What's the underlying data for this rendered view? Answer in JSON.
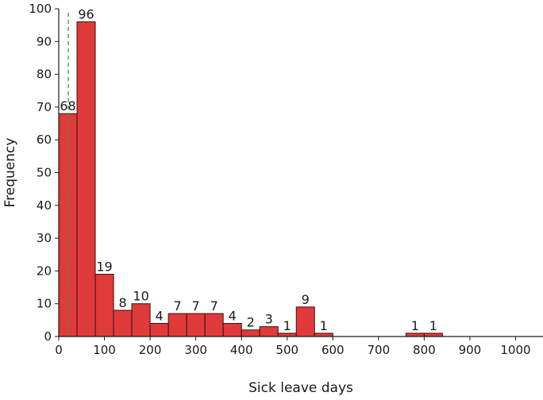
{
  "chart_data": {
    "type": "bar",
    "histogram": true,
    "bin_width": 40,
    "xlabel": "Sick leave days",
    "ylabel": "Frequency",
    "xlim": [
      0,
      1060
    ],
    "ylim": [
      0,
      100
    ],
    "x_ticks": [
      0,
      100,
      200,
      300,
      400,
      500,
      600,
      700,
      800,
      900,
      1000
    ],
    "y_ticks": [
      0,
      10,
      20,
      30,
      40,
      50,
      60,
      70,
      80,
      90,
      100
    ],
    "grid": false,
    "bins": [
      {
        "start": 0,
        "end": 40,
        "count": 68,
        "label": "68"
      },
      {
        "start": 40,
        "end": 80,
        "count": 96,
        "label": "96"
      },
      {
        "start": 80,
        "end": 120,
        "count": 19,
        "label": "19"
      },
      {
        "start": 120,
        "end": 160,
        "count": 8,
        "label": "8"
      },
      {
        "start": 160,
        "end": 200,
        "count": 10,
        "label": "10"
      },
      {
        "start": 200,
        "end": 240,
        "count": 4,
        "label": "4"
      },
      {
        "start": 240,
        "end": 280,
        "count": 7,
        "label": "7"
      },
      {
        "start": 280,
        "end": 320,
        "count": 7,
        "label": "7"
      },
      {
        "start": 320,
        "end": 360,
        "count": 7,
        "label": "7"
      },
      {
        "start": 360,
        "end": 400,
        "count": 4,
        "label": "4"
      },
      {
        "start": 400,
        "end": 440,
        "count": 2,
        "label": "2"
      },
      {
        "start": 440,
        "end": 480,
        "count": 3,
        "label": "3"
      },
      {
        "start": 480,
        "end": 520,
        "count": 1,
        "label": "1"
      },
      {
        "start": 520,
        "end": 560,
        "count": 9,
        "label": "9"
      },
      {
        "start": 560,
        "end": 600,
        "count": 1,
        "label": "1"
      },
      {
        "start": 760,
        "end": 800,
        "count": 1,
        "label": "1"
      },
      {
        "start": 800,
        "end": 840,
        "count": 1,
        "label": "1"
      }
    ],
    "reference_line": {
      "x": 21,
      "style": "dashed",
      "color": "#2e9e3e"
    },
    "colors": {
      "bar_fill": "#e03a3a",
      "bar_edge": "#3a1010",
      "axis": "#1a1a1a"
    }
  }
}
